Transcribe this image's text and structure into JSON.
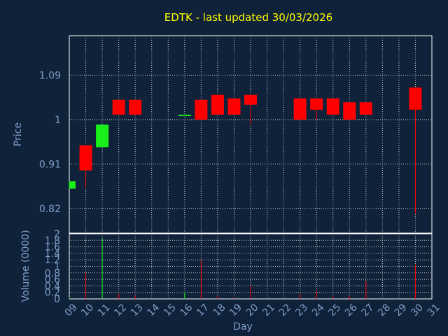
{
  "chart_data": {
    "type": "candlestick",
    "title": "EDTK - last updated 30/03/2026",
    "xlabel": "Day",
    "price_ylabel": "Price",
    "volume_ylabel": "Volume (0000)",
    "x_ticks": [
      "09",
      "10",
      "11",
      "12",
      "13",
      "14",
      "15",
      "16",
      "17",
      "18",
      "19",
      "20",
      "21",
      "22",
      "23",
      "24",
      "25",
      "26",
      "27",
      "28",
      "29",
      "30",
      "31"
    ],
    "price_ticks": [
      "1.09",
      "1",
      "0.91",
      "0.82"
    ],
    "volume_ticks": [
      "2",
      "1.8",
      "1.6",
      "1.4",
      "1.2",
      "1",
      "0.8",
      "0.6",
      "0.4",
      "0.2",
      "0"
    ],
    "price_ylim": [
      0.77,
      1.17
    ],
    "volume_ylim": [
      0,
      2
    ],
    "grid": true,
    "candles": [
      {
        "day": 9,
        "open": 0.86,
        "high": 0.875,
        "low": 0.86,
        "close": 0.875
      },
      {
        "day": 10,
        "open": 0.948,
        "high": 0.948,
        "low": 0.862,
        "close": 0.897
      },
      {
        "day": 11,
        "open": 0.944,
        "high": 0.99,
        "low": 0.944,
        "close": 0.99
      },
      {
        "day": 12,
        "open": 1.04,
        "high": 1.04,
        "low": 1.01,
        "close": 1.01
      },
      {
        "day": 13,
        "open": 1.04,
        "high": 1.04,
        "low": 1.01,
        "close": 1.01
      },
      {
        "day": 16,
        "open": 1.01,
        "high": 1.01,
        "low": 1.01,
        "close": 1.01
      },
      {
        "day": 17,
        "open": 1.04,
        "high": 1.04,
        "low": 1.0,
        "close": 1.0
      },
      {
        "day": 18,
        "open": 1.05,
        "high": 1.05,
        "low": 1.01,
        "close": 1.01
      },
      {
        "day": 19,
        "open": 1.043,
        "high": 1.043,
        "low": 1.01,
        "close": 1.01
      },
      {
        "day": 20,
        "open": 1.05,
        "high": 1.05,
        "low": 0.99,
        "close": 1.03
      },
      {
        "day": 23,
        "open": 1.043,
        "high": 1.043,
        "low": 1.0,
        "close": 1.0
      },
      {
        "day": 24,
        "open": 1.043,
        "high": 1.043,
        "low": 1.0,
        "close": 1.02
      },
      {
        "day": 25,
        "open": 1.043,
        "high": 1.043,
        "low": 1.01,
        "close": 1.01
      },
      {
        "day": 26,
        "open": 1.035,
        "high": 1.035,
        "low": 1.0,
        "close": 1.0
      },
      {
        "day": 27,
        "open": 1.035,
        "high": 1.035,
        "low": 1.01,
        "close": 1.01
      },
      {
        "day": 30,
        "open": 1.065,
        "high": 1.065,
        "low": 0.81,
        "close": 1.02
      }
    ],
    "volume": [
      {
        "day": 9,
        "value": 0.05,
        "dir": "up"
      },
      {
        "day": 10,
        "value": 0.8,
        "dir": "down"
      },
      {
        "day": 11,
        "value": 1.85,
        "dir": "up"
      },
      {
        "day": 12,
        "value": 0.15,
        "dir": "down"
      },
      {
        "day": 13,
        "value": 0.1,
        "dir": "down"
      },
      {
        "day": 16,
        "value": 0.2,
        "dir": "up"
      },
      {
        "day": 17,
        "value": 1.2,
        "dir": "down"
      },
      {
        "day": 18,
        "value": 0.1,
        "dir": "down"
      },
      {
        "day": 19,
        "value": 0.05,
        "dir": "down"
      },
      {
        "day": 20,
        "value": 0.4,
        "dir": "down"
      },
      {
        "day": 23,
        "value": 0.15,
        "dir": "down"
      },
      {
        "day": 24,
        "value": 0.25,
        "dir": "down"
      },
      {
        "day": 25,
        "value": 0.1,
        "dir": "down"
      },
      {
        "day": 26,
        "value": 0.1,
        "dir": "down"
      },
      {
        "day": 27,
        "value": 0.55,
        "dir": "down"
      },
      {
        "day": 30,
        "value": 1.05,
        "dir": "down"
      }
    ],
    "colors": {
      "background": "#10213a",
      "up": "#1aee1a",
      "down": "#ff0000",
      "title": "#ffff00",
      "axis_text": "#7f9fc8",
      "grid": "#c8c8c8",
      "frame": "#ffffff"
    }
  }
}
